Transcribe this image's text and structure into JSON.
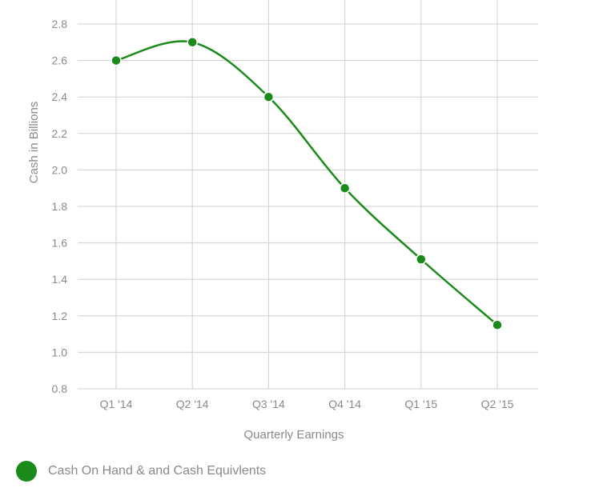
{
  "chart_data": {
    "type": "line",
    "title": "",
    "xlabel": "Quarterly Earnings",
    "ylabel": "Cash in Billions",
    "categories": [
      "Q1 '14",
      "Q2 '14",
      "Q3 '14",
      "Q4 '14",
      "Q1 '15",
      "Q2 '15"
    ],
    "series": [
      {
        "name": "Cash On Hand & and Cash Equivlents",
        "values": [
          2.6,
          2.7,
          2.4,
          1.9,
          1.51,
          1.15
        ]
      }
    ],
    "ylim": [
      0.8,
      2.8
    ],
    "yticks": [
      "0.8",
      "1.0",
      "1.2",
      "1.4",
      "1.6",
      "1.8",
      "2.0",
      "2.2",
      "2.4",
      "2.6",
      "2.8"
    ],
    "grid": true,
    "legend_position": "bottom-left",
    "colors": {
      "series": "#1a8a1a",
      "grid": "#cfcfcf",
      "text": "#8a8a8a"
    }
  }
}
